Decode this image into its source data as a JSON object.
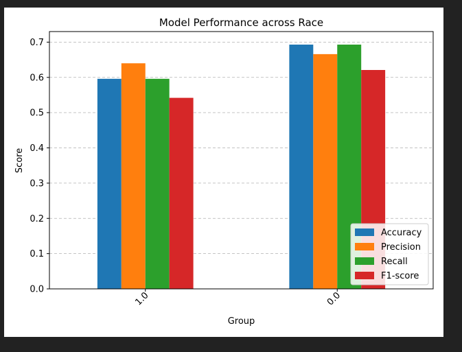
{
  "chart_data": {
    "type": "bar",
    "title": "Model Performance across Race",
    "xlabel": "Group",
    "ylabel": "Score",
    "categories": [
      "1.0",
      "0.0"
    ],
    "series": [
      {
        "name": "Accuracy",
        "color": "#1f77b4",
        "values": [
          0.596,
          0.693
        ]
      },
      {
        "name": "Precision",
        "color": "#ff7f0e",
        "values": [
          0.64,
          0.666
        ]
      },
      {
        "name": "Recall",
        "color": "#2ca02c",
        "values": [
          0.596,
          0.693
        ]
      },
      {
        "name": "F1-score",
        "color": "#d62728",
        "values": [
          0.542,
          0.621
        ]
      }
    ],
    "ylim": [
      0,
      0.73
    ],
    "yticks": [
      "0.0",
      "0.1",
      "0.2",
      "0.3",
      "0.4",
      "0.5",
      "0.6",
      "0.7"
    ],
    "grid": "y-dashed",
    "legend_position": "lower-right",
    "xtick_rotation": 45
  }
}
